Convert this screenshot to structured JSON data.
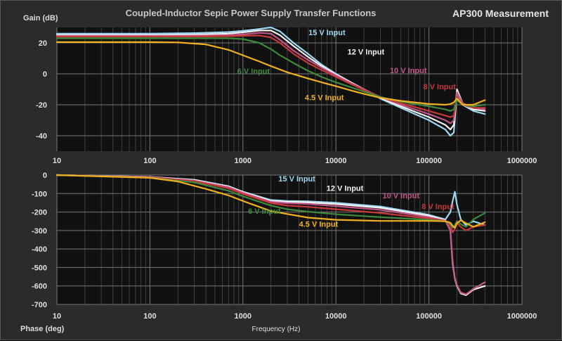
{
  "title": "Coupled-Inductor Sepic Power Supply Transfer Functions",
  "subtitle": "AP300 Measurement",
  "xlabel": "Frequency (Hz)",
  "gain_ylabel": "Gain (dB)",
  "phase_ylabel": "Phase (deg)",
  "chart_data": [
    {
      "type": "line",
      "panel": "gain",
      "xscale": "log",
      "xlim": [
        10,
        1000000
      ],
      "ylim": [
        -50,
        30
      ],
      "xticks": [
        10,
        100,
        1000,
        10000,
        100000,
        1000000
      ],
      "yticks": [
        -40,
        -20,
        0,
        20
      ],
      "grid": true,
      "ylabel": "Gain (dB)",
      "series": [
        {
          "name": "15 V Input",
          "color": "#9fd8f2",
          "x": [
            10,
            100,
            300,
            700,
            1000,
            1500,
            2000,
            2500,
            3500,
            5000,
            7000,
            10000,
            15000,
            20000,
            30000,
            50000,
            100000,
            150000,
            170000,
            185000,
            200000,
            230000,
            300000,
            400000
          ],
          "y": [
            26,
            26,
            26.3,
            27,
            27.8,
            29,
            30,
            27.5,
            20,
            13,
            6,
            0,
            -6,
            -10,
            -16,
            -22,
            -30,
            -36,
            -40,
            -38,
            -12,
            -20,
            -24,
            -26
          ]
        },
        {
          "name": "12 V Input",
          "color": "#f2f2f2",
          "x": [
            10,
            100,
            300,
            700,
            1000,
            1500,
            2000,
            2500,
            3500,
            5000,
            7000,
            10000,
            15000,
            20000,
            30000,
            50000,
            100000,
            150000,
            170000,
            185000,
            200000,
            230000,
            300000,
            400000
          ],
          "y": [
            25,
            25,
            25.3,
            26,
            26.8,
            28,
            28,
            25,
            18,
            11,
            5,
            -0.5,
            -6,
            -10,
            -15.5,
            -21,
            -28,
            -33,
            -36,
            -33,
            -10,
            -19,
            -23,
            -24
          ]
        },
        {
          "name": "10 V Input",
          "color": "#c2568a",
          "x": [
            10,
            100,
            300,
            700,
            1000,
            1500,
            2000,
            2500,
            3500,
            5000,
            7000,
            10000,
            15000,
            20000,
            30000,
            50000,
            100000,
            150000,
            170000,
            185000,
            200000,
            230000,
            300000,
            400000
          ],
          "y": [
            24.5,
            24.5,
            24.6,
            25,
            25.5,
            26.5,
            26,
            22,
            15,
            9,
            4,
            -1,
            -6.5,
            -10,
            -15,
            -20,
            -26,
            -30,
            -32,
            -30,
            -12,
            -19,
            -22,
            -23
          ]
        },
        {
          "name": "8 V Input",
          "color": "#c83838",
          "x": [
            10,
            100,
            300,
            700,
            1000,
            1500,
            2000,
            2500,
            3500,
            5000,
            7000,
            10000,
            15000,
            20000,
            30000,
            50000,
            100000,
            150000,
            170000,
            185000,
            200000,
            230000,
            300000,
            400000
          ],
          "y": [
            24,
            24,
            24,
            24.3,
            24.6,
            24.8,
            23.5,
            20,
            13,
            7,
            2.5,
            -2,
            -7,
            -10.5,
            -15,
            -19,
            -24,
            -27,
            -28,
            -27,
            -15,
            -20,
            -22,
            -22
          ]
        },
        {
          "name": "6 V Input",
          "color": "#3d8a3d",
          "x": [
            10,
            100,
            300,
            700,
            1000,
            1500,
            2000,
            2500,
            3500,
            5000,
            7000,
            10000,
            15000,
            20000,
            30000,
            50000,
            100000,
            150000,
            170000,
            185000,
            200000,
            230000,
            300000,
            400000
          ],
          "y": [
            23,
            23,
            23,
            23,
            22.5,
            20,
            16,
            12,
            7,
            2,
            -2,
            -5.5,
            -9,
            -11.5,
            -15,
            -18,
            -21,
            -23,
            -24,
            -23,
            -17,
            -20,
            -21,
            -20
          ]
        },
        {
          "name": "4.5 V Input",
          "color": "#f0b020",
          "x": [
            10,
            100,
            200,
            400,
            700,
            1000,
            1500,
            2000,
            3000,
            5000,
            7000,
            10000,
            15000,
            20000,
            30000,
            50000,
            100000,
            150000,
            170000,
            185000,
            200000,
            230000,
            300000,
            400000
          ],
          "y": [
            20.5,
            20.5,
            20.3,
            19,
            15.5,
            12,
            8,
            5,
            1,
            -3,
            -5.5,
            -8,
            -11,
            -13,
            -15.5,
            -17.5,
            -19.5,
            -20,
            -19.5,
            -18.5,
            -16,
            -20,
            -20,
            -17
          ]
        }
      ]
    },
    {
      "type": "line",
      "panel": "phase",
      "xscale": "log",
      "xlim": [
        10,
        1000000
      ],
      "ylim": [
        -700,
        0
      ],
      "xticks": [
        10,
        100,
        1000,
        10000,
        100000,
        1000000
      ],
      "yticks": [
        0,
        -100,
        -200,
        -300,
        -400,
        -500,
        -600,
        -700
      ],
      "grid": true,
      "ylabel": "Phase (deg)",
      "series": [
        {
          "name": "15 V Input",
          "color": "#9fd8f2",
          "x": [
            10,
            100,
            300,
            700,
            1000,
            2000,
            3000,
            5000,
            10000,
            30000,
            100000,
            150000,
            170000,
            180000,
            190000,
            200000,
            220000,
            250000,
            300000,
            400000
          ],
          "y": [
            0,
            -10,
            -25,
            -60,
            -90,
            -135,
            -140,
            -142,
            -150,
            -170,
            -215,
            -240,
            -200,
            -140,
            -90,
            -160,
            -240,
            -270,
            -250,
            -270
          ]
        },
        {
          "name": "12 V Input",
          "color": "#f2f2f2",
          "x": [
            10,
            100,
            300,
            700,
            1000,
            2000,
            3000,
            5000,
            10000,
            30000,
            100000,
            150000,
            170000,
            180000,
            190000,
            200000,
            220000,
            250000,
            300000,
            400000
          ],
          "y": [
            0,
            -10,
            -27,
            -62,
            -92,
            -140,
            -145,
            -148,
            -157,
            -177,
            -220,
            -245,
            -300,
            -480,
            -560,
            -600,
            -640,
            -650,
            -620,
            -600
          ]
        },
        {
          "name": "10 V Input",
          "color": "#c2568a",
          "x": [
            10,
            100,
            300,
            700,
            1000,
            2000,
            3000,
            5000,
            10000,
            30000,
            100000,
            150000,
            170000,
            180000,
            190000,
            200000,
            220000,
            250000,
            300000,
            400000
          ],
          "y": [
            0,
            -11,
            -30,
            -66,
            -96,
            -145,
            -152,
            -156,
            -168,
            -188,
            -228,
            -247,
            -300,
            -470,
            -555,
            -595,
            -635,
            -645,
            -615,
            -580
          ]
        },
        {
          "name": "8 V Input",
          "color": "#c83838",
          "x": [
            10,
            100,
            300,
            700,
            1000,
            2000,
            3000,
            5000,
            10000,
            30000,
            100000,
            150000,
            170000,
            180000,
            190000,
            200000,
            220000,
            250000,
            300000,
            400000
          ],
          "y": [
            0,
            -12,
            -33,
            -72,
            -102,
            -152,
            -165,
            -172,
            -185,
            -205,
            -235,
            -248,
            -275,
            -310,
            -290,
            -260,
            -280,
            -300,
            -280,
            -270
          ]
        },
        {
          "name": "6 V Input",
          "color": "#3d8a3d",
          "x": [
            10,
            100,
            300,
            700,
            1000,
            2000,
            3000,
            5000,
            10000,
            30000,
            100000,
            150000,
            170000,
            180000,
            190000,
            200000,
            220000,
            250000,
            300000,
            400000
          ],
          "y": [
            0,
            -14,
            -40,
            -85,
            -115,
            -165,
            -185,
            -198,
            -212,
            -228,
            -242,
            -250,
            -265,
            -285,
            -270,
            -250,
            -265,
            -280,
            -240,
            -205
          ]
        },
        {
          "name": "4.5 V Input",
          "color": "#f0b020",
          "x": [
            10,
            100,
            200,
            400,
            700,
            1000,
            2000,
            5000,
            10000,
            30000,
            100000,
            150000,
            170000,
            180000,
            190000,
            200000,
            220000,
            250000,
            300000,
            400000
          ],
          "y": [
            0,
            -15,
            -35,
            -75,
            -110,
            -140,
            -195,
            -230,
            -242,
            -248,
            -248,
            -250,
            -258,
            -275,
            -285,
            -260,
            -245,
            -260,
            -280,
            -255
          ]
        }
      ]
    }
  ],
  "annotations": {
    "gain": [
      {
        "text": "15 V Input",
        "color": "#9fd8f2",
        "fx": 8000,
        "fy": 25
      },
      {
        "text": "12 V Input",
        "color": "#f2f2f2",
        "fx": 21000,
        "fy": 12.5
      },
      {
        "text": "10 V Input",
        "color": "#c2568a",
        "fx": 60000,
        "fy": 0.5
      },
      {
        "text": "8 V Input",
        "color": "#c83838",
        "fx": 130000,
        "fy": -10
      },
      {
        "text": "6 V Input",
        "color": "#3d8a3d",
        "fx": 1300,
        "fy": 0
      },
      {
        "text": "4.5 V Input",
        "color": "#f0b020",
        "fx": 7500,
        "fy": -17
      }
    ],
    "phase": [
      {
        "text": "15 V Input",
        "color": "#9fd8f2",
        "fx": 3800,
        "fy": -35
      },
      {
        "text": "12 V Input",
        "color": "#f2f2f2",
        "fx": 12500,
        "fy": -85
      },
      {
        "text": "10 V Input",
        "color": "#c2568a",
        "fx": 50000,
        "fy": -125
      },
      {
        "text": "8 V Input",
        "color": "#c83838",
        "fx": 125000,
        "fy": -185
      },
      {
        "text": "6 V Input",
        "color": "#3d8a3d",
        "fx": 1700,
        "fy": -210
      },
      {
        "text": "4.5 V Input",
        "color": "#f0b020",
        "fx": 6500,
        "fy": -280
      }
    ]
  }
}
